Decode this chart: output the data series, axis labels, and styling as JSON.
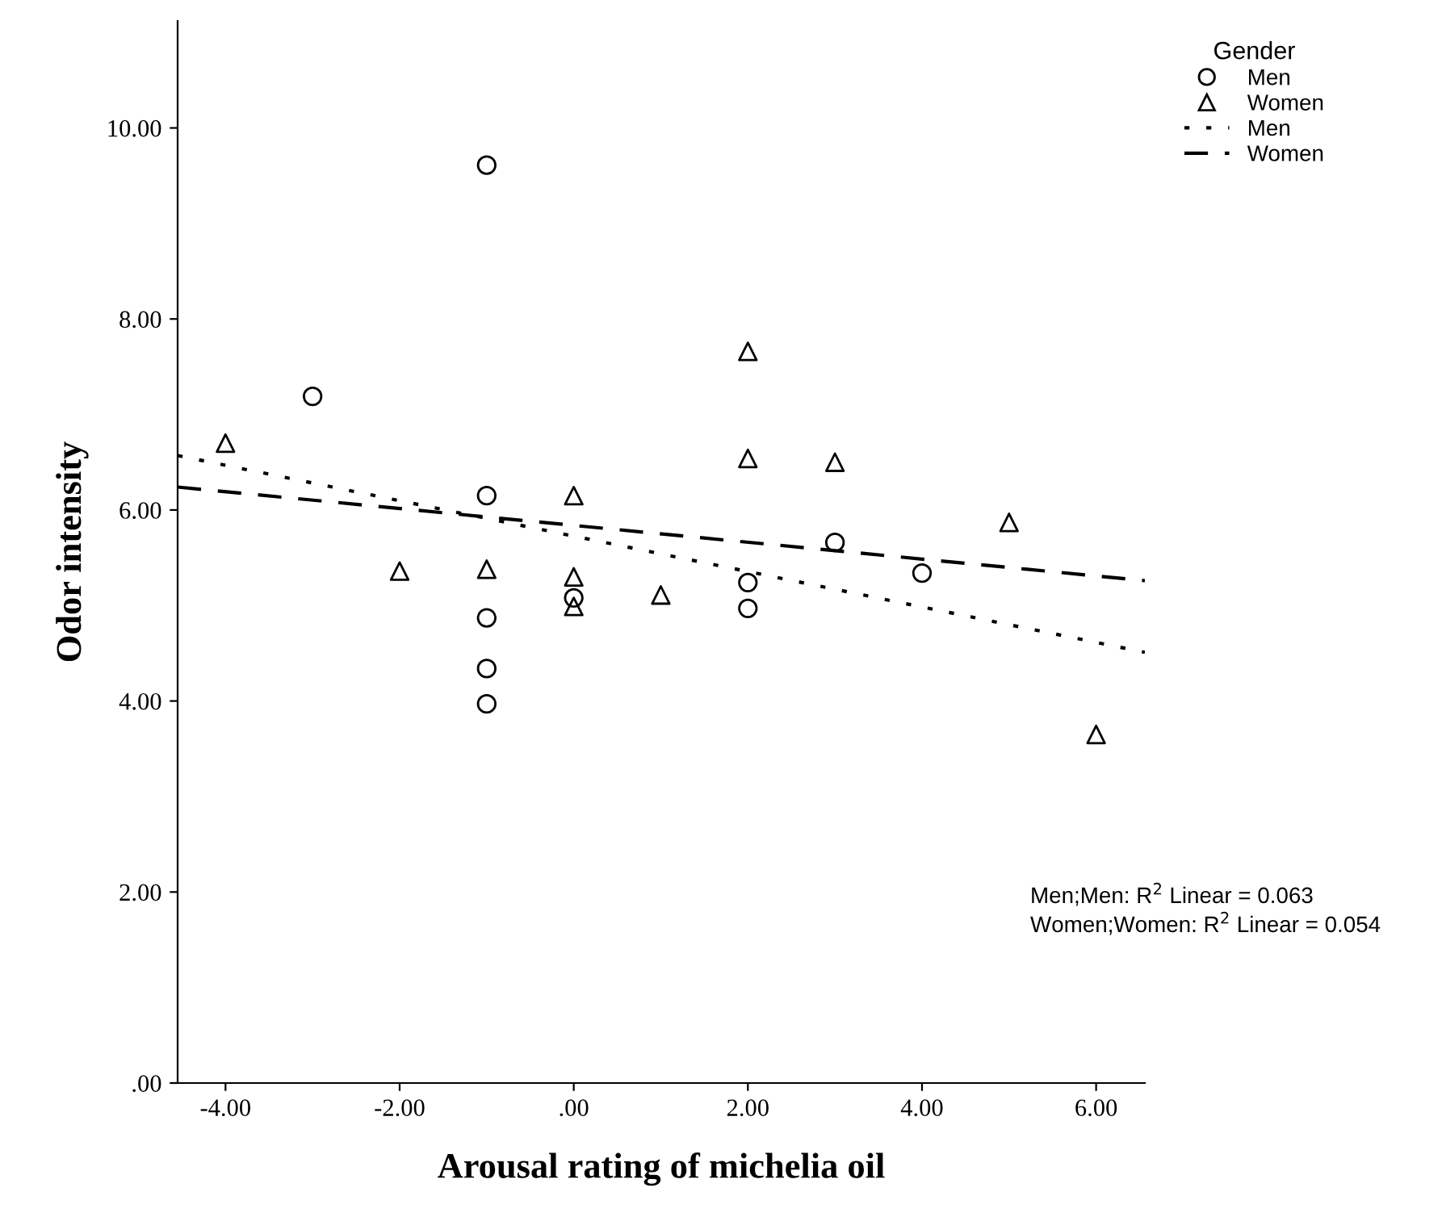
{
  "chart_data": {
    "type": "scatter",
    "xlabel": "Arousal rating of michelia oil",
    "ylabel": "Odor intensity",
    "legend_title": "Gender",
    "legend": "top right",
    "grid": false,
    "xlim": [
      -4.55,
      6.56
    ],
    "ylim": [
      0,
      11.12
    ],
    "xticks": [
      {
        "value": -4,
        "label": "-4.00"
      },
      {
        "value": -2,
        "label": "-2.00"
      },
      {
        "value": 0,
        "label": ".00"
      },
      {
        "value": 2,
        "label": "2.00"
      },
      {
        "value": 4,
        "label": "4.00"
      },
      {
        "value": 6,
        "label": "6.00"
      }
    ],
    "yticks": [
      {
        "value": 0,
        "label": ".00"
      },
      {
        "value": 2,
        "label": "2.00"
      },
      {
        "value": 4,
        "label": "4.00"
      },
      {
        "value": 6,
        "label": "6.00"
      },
      {
        "value": 8,
        "label": "8.00"
      },
      {
        "value": 10,
        "label": "10.00"
      }
    ],
    "series": [
      {
        "name": "Men",
        "type": "scatter",
        "marker": "circle",
        "color": "#000000",
        "x": [
          -3,
          -1,
          -1,
          -1,
          -1,
          -1,
          0,
          2,
          2,
          3,
          4
        ],
        "values": [
          7.19,
          9.61,
          6.15,
          4.87,
          4.34,
          3.97,
          5.08,
          5.24,
          4.97,
          5.66,
          5.34
        ]
      },
      {
        "name": "Women",
        "type": "scatter",
        "marker": "triangle",
        "color": "#000000",
        "x": [
          -4,
          -2,
          -1,
          0,
          0,
          0,
          1,
          2,
          2,
          3,
          5,
          6
        ],
        "values": [
          6.7,
          5.36,
          5.38,
          6.15,
          5.3,
          4.99,
          5.11,
          7.66,
          6.54,
          6.5,
          5.87,
          3.65
        ]
      },
      {
        "name": "Men",
        "type": "line",
        "line_style": "dotted",
        "color": "#000000",
        "x": [
          -4.55,
          6.56
        ],
        "values": [
          6.57,
          4.51
        ]
      },
      {
        "name": "Women",
        "type": "line",
        "line_style": "dashed",
        "color": "#000000",
        "x": [
          -4.55,
          6.56
        ],
        "values": [
          6.24,
          5.26
        ]
      }
    ],
    "annotations": [
      "Men;Men: R$^{2}$ Linear = 0.063",
      "Women;Women: R$^{2}$ Linear = 0.054"
    ]
  }
}
